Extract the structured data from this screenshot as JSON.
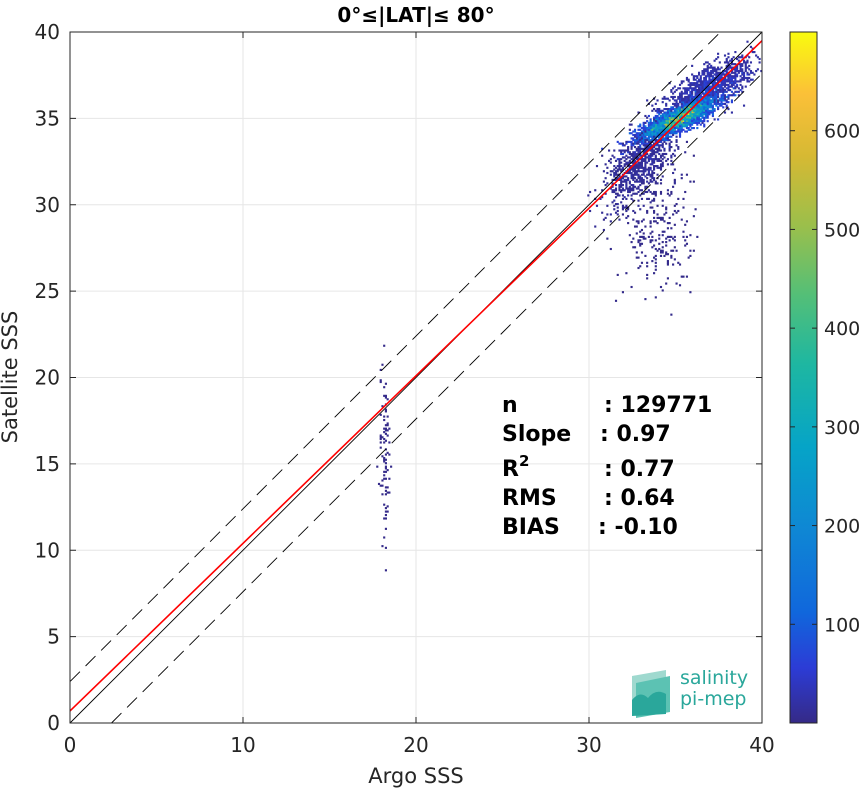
{
  "chart_data": {
    "type": "heatmap",
    "title": "0°≤|LAT|≤ 80°",
    "xlabel": "Argo SSS",
    "ylabel": "Satellite SSS",
    "xlim": [
      0,
      40
    ],
    "ylim": [
      0,
      40
    ],
    "x_ticks": [
      0,
      10,
      20,
      30,
      40
    ],
    "y_ticks": [
      0,
      5,
      10,
      15,
      20,
      25,
      30,
      35,
      40
    ],
    "grid": true,
    "colorbar": {
      "range": [
        0,
        700
      ],
      "ticks": [
        100,
        200,
        300,
        400,
        500,
        600
      ],
      "colormap": "parula"
    },
    "lines": [
      {
        "name": "1:1",
        "slope": 1,
        "intercept": 0,
        "color": "#000000",
        "style": "solid"
      },
      {
        "name": "fit",
        "slope": 0.97,
        "intercept": 0.7,
        "color": "#ff0000",
        "style": "solid"
      },
      {
        "name": "upper",
        "slope": 1,
        "intercept": 2.4,
        "color": "#000000",
        "style": "dashed"
      },
      {
        "name": "lower",
        "slope": 1,
        "intercept": -2.4,
        "color": "#000000",
        "style": "dashed"
      }
    ],
    "density_clusters": [
      {
        "x": 35.2,
        "y": 35.0,
        "sx": 1.1,
        "sy": 0.6,
        "rho": 0.8,
        "n": 2600,
        "weight": 1.0
      },
      {
        "x": 37.0,
        "y": 36.8,
        "sx": 1.2,
        "sy": 0.8,
        "rho": 0.7,
        "n": 1200,
        "weight": 0.25
      },
      {
        "x": 33.0,
        "y": 32.5,
        "sx": 1.0,
        "sy": 1.2,
        "rho": 0.6,
        "n": 900,
        "weight": 0.12
      },
      {
        "x": 34.0,
        "y": 28.5,
        "sx": 1.0,
        "sy": 2.0,
        "rho": 0.0,
        "n": 250,
        "weight": 0.03
      },
      {
        "x": 18.2,
        "y": 15.5,
        "sx": 0.15,
        "sy": 2.8,
        "rho": 0.0,
        "n": 90,
        "weight": 0.02
      }
    ],
    "stats": [
      {
        "label": "n",
        "value": ": 129771"
      },
      {
        "label": "Slope",
        "value": ": 0.97"
      },
      {
        "label": "R",
        "sup": "2",
        "value": ": 0.77"
      },
      {
        "label": "RMS",
        "value": ": 0.64"
      },
      {
        "label": "BIAS",
        "value": ": -0.10"
      }
    ]
  },
  "logo": {
    "line1": "salinity",
    "line2": "pi-mep"
  }
}
